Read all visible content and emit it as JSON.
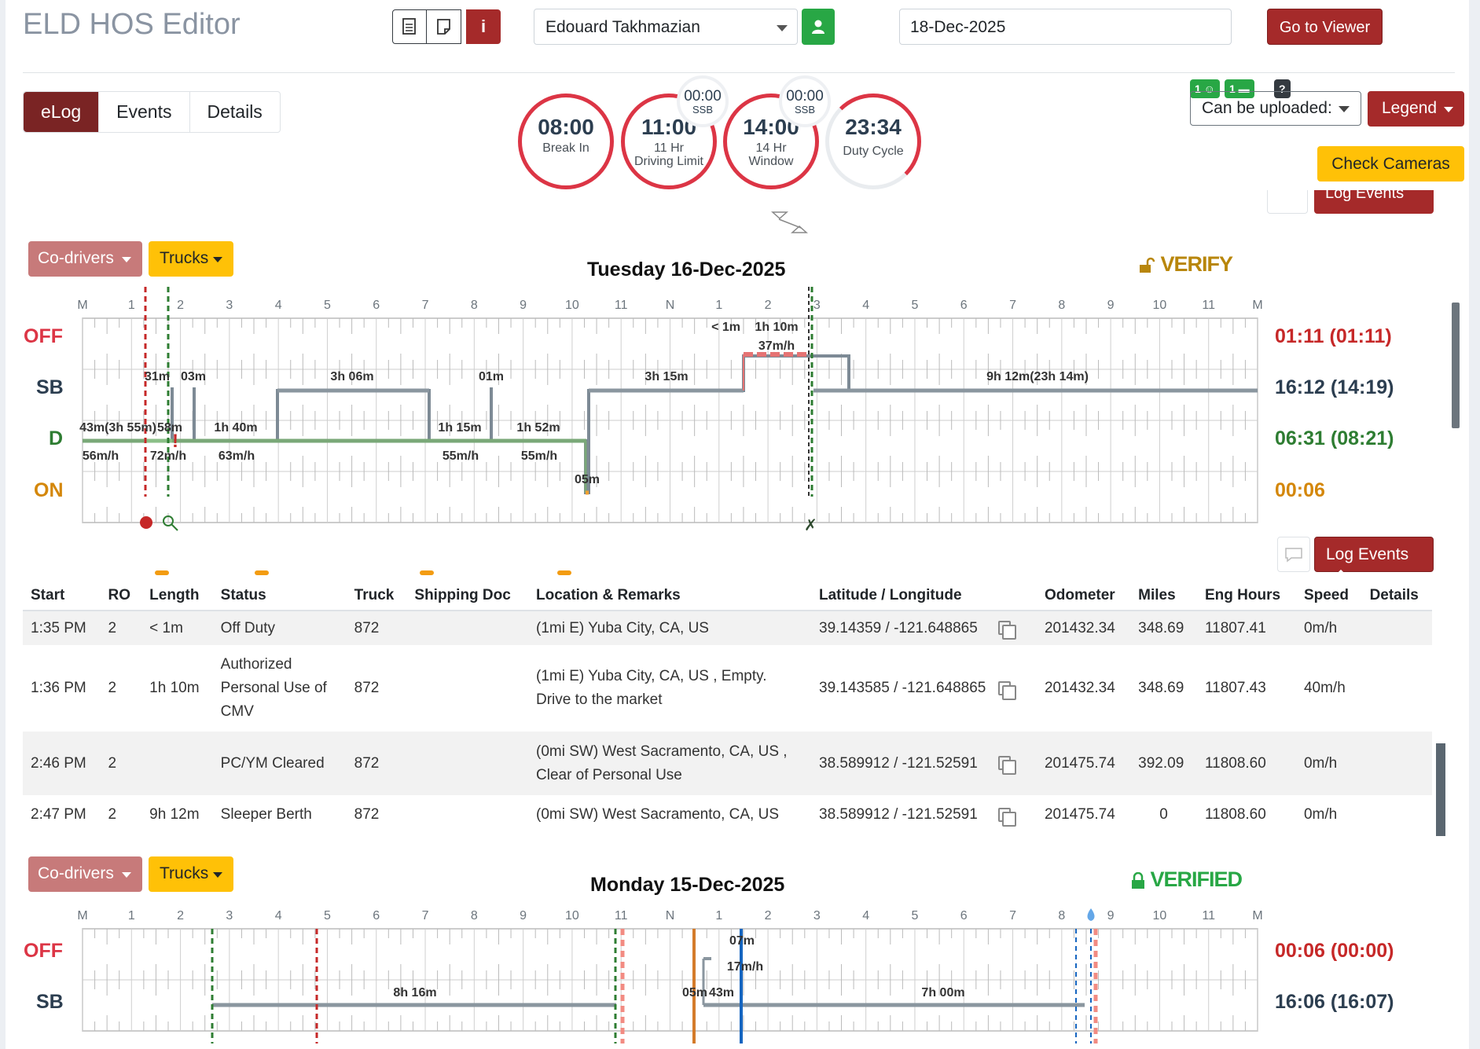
{
  "header": {
    "title": "ELD HOS Editor",
    "driver": "Edouard Takhmazian",
    "date": "18-Dec-2025",
    "go_to_viewer": "Go to Viewer",
    "info_icon": "i"
  },
  "tabs": [
    "eLog",
    "Events",
    "Details"
  ],
  "gauges": {
    "break_in": {
      "value": "08:00",
      "label": "Break In"
    },
    "driving_limit": {
      "value": "11:00",
      "label_1": "11 Hr",
      "label_2": "Driving Limit",
      "ssb_value": "00:00",
      "ssb_label": "SSB"
    },
    "window": {
      "value": "14:00",
      "label_1": "14 Hr",
      "label_2": "Window",
      "ssb_value": "00:00",
      "ssb_label": "SSB"
    },
    "duty_cycle": {
      "value": "23:34",
      "label": "Duty Cycle"
    }
  },
  "controls": {
    "badge_1": "1",
    "badge_2": "1",
    "badge_help": "?",
    "upload_select": "Can be uploaded:",
    "legend": "Legend",
    "check_cameras": "Check Cameras",
    "log_events": "Log Events",
    "co_drivers": "Co-drivers",
    "trucks": "Trucks"
  },
  "hour_labels": [
    "M",
    "1",
    "2",
    "3",
    "4",
    "5",
    "6",
    "7",
    "8",
    "9",
    "10",
    "11",
    "N",
    "1",
    "2",
    "3",
    "4",
    "5",
    "6",
    "7",
    "8",
    "9",
    "10",
    "11",
    "M"
  ],
  "status_labels": {
    "off": "OFF",
    "sb": "SB",
    "d": "D",
    "on": "ON"
  },
  "day1": {
    "title": "Tuesday 16-Dec-2025",
    "status_badge": "VERIFY",
    "totals": {
      "off": "01:11 (01:11)",
      "sb": "16:12 (14:19)",
      "d": "06:31 (08:21)",
      "on": "00:06"
    },
    "segment_labels": {
      "off_a": "< 1m",
      "off_b": "1h 10m",
      "off_speed": "37m/h",
      "sb_1": "31m",
      "sb_2": "03m",
      "sb_3": "3h 06m",
      "sb_4": "01m",
      "sb_5": "3h 15m",
      "sb_6": "9h 12m(23h 14m)",
      "d_1": "43m(3h 55m)",
      "d_1_speed": "56m/h",
      "d_2": "58m",
      "d_2_speed": "72m/h",
      "d_3": "1h 40m",
      "d_3_speed": "63m/h",
      "d_4": "1h 15m",
      "d_4_speed": "55m/h",
      "d_5": "1h 52m",
      "d_5_speed": "55m/h",
      "on_1": "05m"
    }
  },
  "table": {
    "headers": [
      "Start",
      "RO",
      "Length",
      "Status",
      "Truck",
      "Shipping Doc",
      "Location & Remarks",
      "Latitude / Longitude",
      "Odometer",
      "Miles",
      "Eng Hours",
      "Speed",
      "Details"
    ],
    "rows": [
      {
        "start": "1:35 PM",
        "ro": "2",
        "length": "< 1m",
        "status": "Off Duty",
        "truck": "872",
        "doc": "",
        "location": "(1mi E) Yuba City, CA, US",
        "latlng": "39.14359 / -121.648865",
        "odometer": "201432.34",
        "miles": "348.69",
        "eng": "11807.41",
        "speed": "0m/h"
      },
      {
        "start": "1:36 PM",
        "ro": "2",
        "length": "1h 10m",
        "status": "Authorized Personal Use of CMV",
        "truck": "872",
        "doc": "",
        "location": "(1mi E) Yuba City, CA, US , Empty. Drive to the market",
        "latlng": "39.143585 / -121.648865",
        "odometer": "201432.34",
        "miles": "348.69",
        "eng": "11807.43",
        "speed": "40m/h"
      },
      {
        "start": "2:46 PM",
        "ro": "2",
        "length": "",
        "status": "PC/YM Cleared",
        "truck": "872",
        "doc": "",
        "location": "(0mi SW) West Sacramento, CA, US , Clear of Personal Use",
        "latlng": "38.589912 / -121.52591",
        "odometer": "201475.74",
        "miles": "392.09",
        "eng": "11808.60",
        "speed": "0m/h"
      },
      {
        "start": "2:47 PM",
        "ro": "2",
        "length": "9h 12m",
        "status": "Sleeper Berth",
        "truck": "872",
        "doc": "",
        "location": "(0mi SW) West Sacramento, CA, US",
        "latlng": "38.589912 / -121.52591",
        "odometer": "201475.74",
        "miles": "0",
        "eng": "11808.60",
        "speed": "0m/h"
      }
    ]
  },
  "day2": {
    "title": "Monday 15-Dec-2025",
    "status_badge": "VERIFIED",
    "totals": {
      "off": "00:06 (00:00)",
      "sb": "16:06 (16:07)"
    },
    "segment_labels": {
      "sb_1": "8h 16m",
      "sb_2": "05m",
      "sb_3": "43m",
      "sb_4": "7h 00m",
      "off_1": "07m",
      "off_speed": "17m/h"
    }
  },
  "colors": {
    "accent_red": "#a52a2a",
    "warning": "#ffc107",
    "success": "#28a745",
    "off": "#dc3545",
    "driving": "#2e7d32",
    "on": "#d4870a"
  }
}
